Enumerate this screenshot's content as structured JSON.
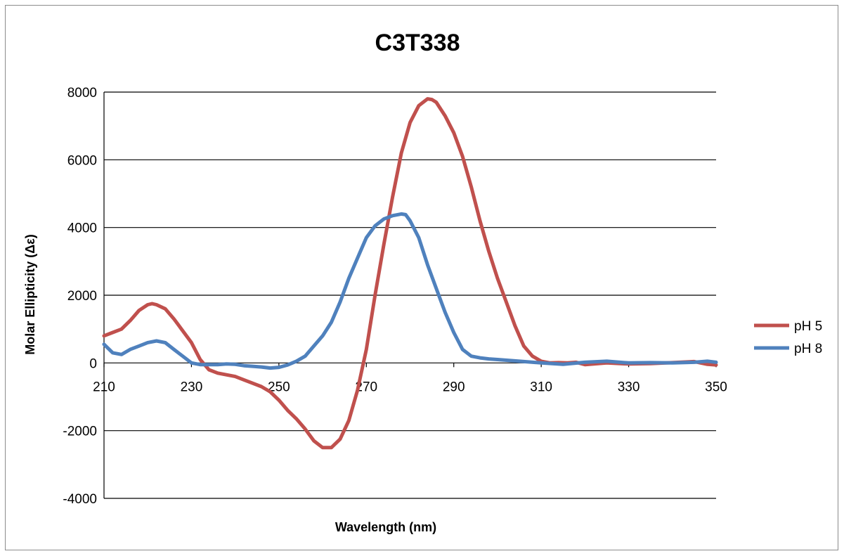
{
  "chart_data": {
    "type": "line",
    "title": "C3T338",
    "xlabel": "Wavelength (nm)",
    "ylabel": "Molar Ellipticity (Δε)",
    "xlim": [
      210,
      350
    ],
    "ylim": [
      -4000,
      8000
    ],
    "x_ticks": [
      "210",
      "230",
      "250",
      "270",
      "290",
      "310",
      "330",
      "350"
    ],
    "y_ticks": [
      "8000",
      "6000",
      "4000",
      "2000",
      "0",
      "-2000",
      "-4000"
    ],
    "grid": true,
    "legend_position": "right",
    "series": [
      {
        "name": "pH 5",
        "color": "#c0504d",
        "x": [
          210,
          212,
          214,
          216,
          218,
          220,
          221,
          222,
          224,
          226,
          228,
          230,
          232,
          234,
          236,
          238,
          240,
          242,
          244,
          246,
          248,
          250,
          252,
          254,
          256,
          258,
          260,
          262,
          264,
          266,
          268,
          270,
          272,
          274,
          276,
          278,
          280,
          282,
          284,
          285,
          286,
          288,
          290,
          292,
          294,
          296,
          298,
          300,
          302,
          304,
          306,
          308,
          310,
          312,
          314,
          316,
          318,
          320,
          325,
          330,
          335,
          340,
          345,
          348,
          350
        ],
        "y": [
          800,
          900,
          1000,
          1250,
          1550,
          1720,
          1750,
          1720,
          1600,
          1300,
          950,
          600,
          100,
          -200,
          -300,
          -350,
          -400,
          -500,
          -600,
          -700,
          -850,
          -1100,
          -1400,
          -1650,
          -1950,
          -2300,
          -2500,
          -2500,
          -2250,
          -1700,
          -800,
          400,
          2000,
          3500,
          4900,
          6200,
          7100,
          7600,
          7800,
          7780,
          7700,
          7300,
          6800,
          6100,
          5200,
          4200,
          3300,
          2500,
          1800,
          1100,
          500,
          200,
          50,
          0,
          10,
          0,
          20,
          -50,
          0,
          -30,
          -20,
          10,
          40,
          -40,
          -60
        ]
      },
      {
        "name": "pH 8",
        "color": "#4f81bd",
        "x": [
          210,
          212,
          214,
          216,
          218,
          220,
          222,
          224,
          226,
          228,
          230,
          232,
          234,
          236,
          238,
          240,
          242,
          244,
          246,
          248,
          250,
          252,
          254,
          256,
          258,
          260,
          262,
          264,
          266,
          268,
          270,
          272,
          274,
          276,
          278,
          279,
          280,
          282,
          284,
          286,
          288,
          290,
          292,
          294,
          296,
          298,
          300,
          305,
          310,
          315,
          320,
          325,
          330,
          335,
          340,
          345,
          348,
          350
        ],
        "y": [
          550,
          300,
          250,
          400,
          500,
          600,
          650,
          600,
          400,
          200,
          0,
          -50,
          -50,
          -50,
          -30,
          -40,
          -80,
          -100,
          -120,
          -150,
          -130,
          -60,
          50,
          200,
          500,
          800,
          1200,
          1800,
          2500,
          3100,
          3700,
          4050,
          4250,
          4350,
          4400,
          4380,
          4200,
          3700,
          2900,
          2200,
          1500,
          900,
          400,
          200,
          150,
          120,
          100,
          50,
          0,
          -40,
          20,
          50,
          0,
          10,
          0,
          20,
          50,
          20
        ]
      }
    ]
  }
}
